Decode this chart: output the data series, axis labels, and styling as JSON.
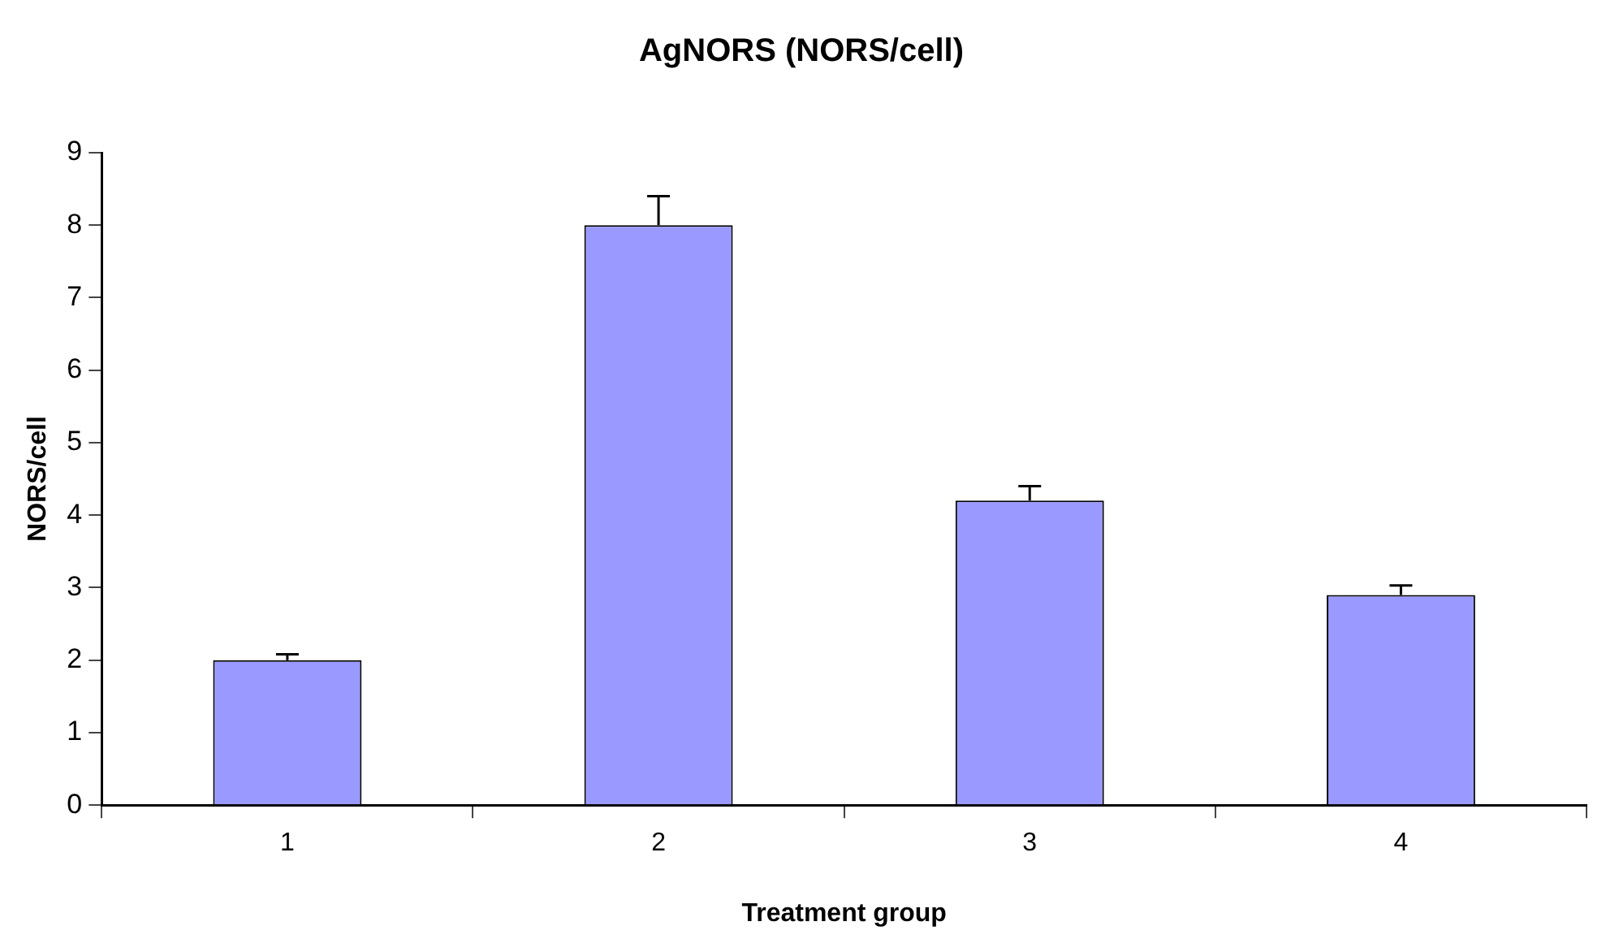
{
  "chart_data": {
    "type": "bar",
    "title": "AgNORS (NORS/cell)",
    "xlabel": "Treatment group",
    "ylabel": "NORS/cell",
    "categories": [
      "1",
      "2",
      "3",
      "4"
    ],
    "values": [
      2.0,
      8.0,
      4.2,
      2.9
    ],
    "errors": [
      [
        2.0,
        2.08
      ],
      [
        8.0,
        8.4
      ],
      [
        4.2,
        4.4
      ],
      [
        2.9,
        3.03
      ]
    ],
    "color": "#9999ff",
    "ylim": [
      0,
      9
    ],
    "yticks": [
      0,
      1,
      2,
      3,
      4,
      5,
      6,
      7,
      8,
      9
    ],
    "grid": false,
    "legend": false
  }
}
